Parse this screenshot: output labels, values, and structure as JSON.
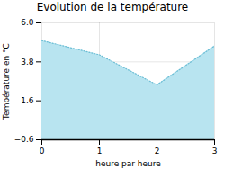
{
  "chart_data": {
    "type": "area",
    "title": "Evolution de la température",
    "xlabel": "heure par heure",
    "ylabel": "Température en °C",
    "x": [
      0,
      1,
      2,
      3
    ],
    "values": [
      5.0,
      4.2,
      2.5,
      4.7
    ],
    "xlim": [
      0,
      3
    ],
    "ylim": [
      -0.6,
      6.0
    ],
    "xticks": [
      0,
      1,
      2,
      3
    ],
    "yticks": [
      -0.6,
      1.6,
      3.8,
      {
        "value": 6.0,
        "label": "6.0"
      }
    ],
    "color": "#b8e4f0",
    "line_style": "dotted",
    "grid": true
  }
}
